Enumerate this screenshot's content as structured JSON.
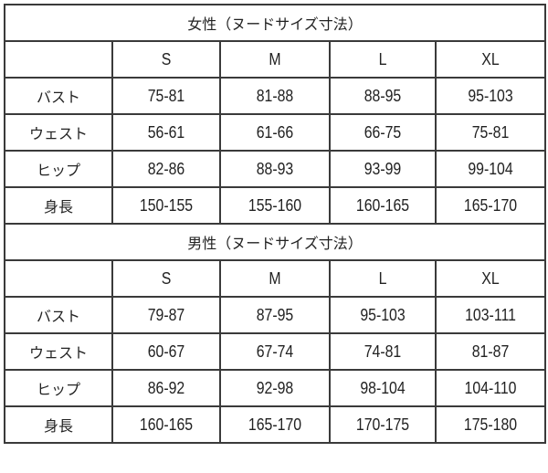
{
  "sections": [
    {
      "title": "女性（ヌードサイズ寸法）",
      "sizes": [
        "S",
        "M",
        "L",
        "XL"
      ],
      "rows": [
        {
          "label": "バスト",
          "values": [
            "75-81",
            "81-88",
            "88-95",
            "95-103"
          ]
        },
        {
          "label": "ウェスト",
          "values": [
            "56-61",
            "61-66",
            "66-75",
            "75-81"
          ]
        },
        {
          "label": "ヒップ",
          "values": [
            "82-86",
            "88-93",
            "93-99",
            "99-104"
          ]
        },
        {
          "label": "身長",
          "values": [
            "150-155",
            "155-160",
            "160-165",
            "165-170"
          ]
        }
      ]
    },
    {
      "title": "男性（ヌードサイズ寸法）",
      "sizes": [
        "S",
        "M",
        "L",
        "XL"
      ],
      "rows": [
        {
          "label": "バスト",
          "values": [
            "79-87",
            "87-95",
            "95-103",
            "103-111"
          ]
        },
        {
          "label": "ウェスト",
          "values": [
            "60-67",
            "67-74",
            "74-81",
            "81-87"
          ]
        },
        {
          "label": "ヒップ",
          "values": [
            "86-92",
            "92-98",
            "98-104",
            "104-110"
          ]
        },
        {
          "label": "身長",
          "values": [
            "160-165",
            "165-170",
            "170-175",
            "175-180"
          ]
        }
      ]
    }
  ]
}
